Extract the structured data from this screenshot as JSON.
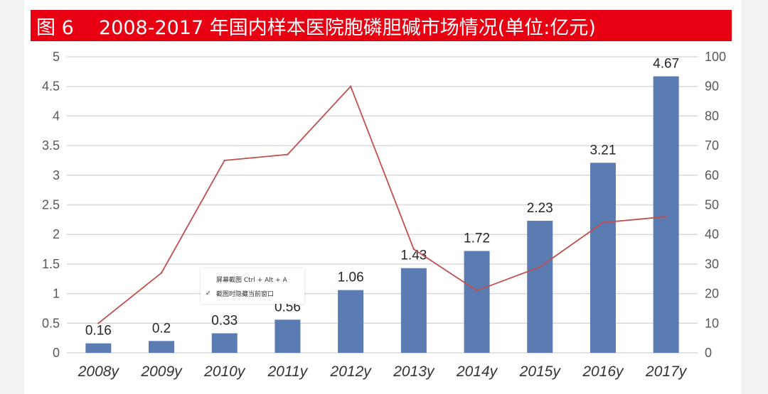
{
  "title": {
    "figure_label": "图 6",
    "text": "2008-2017 年国内样本医院胞磷胆碱市场情况(单位:亿元)"
  },
  "colors": {
    "title_bg": "#e60012",
    "bar": "#5b7bb3",
    "line": "#c0504d",
    "grid": "#d9d9d9"
  },
  "context_menu": {
    "items": [
      {
        "label": "屏幕截图 Ctrl + Alt + A",
        "checked": false
      },
      {
        "label": "截图时隐藏当前窗口",
        "checked": true
      }
    ]
  },
  "chart_data": {
    "type": "bar",
    "categories": [
      "2008y",
      "2009y",
      "2010y",
      "2011y",
      "2012y",
      "2013y",
      "2014y",
      "2015y",
      "2016y",
      "2017y"
    ],
    "series": [
      {
        "type": "bar",
        "axis": "left",
        "values": [
          0.16,
          0.2,
          0.33,
          0.56,
          1.06,
          1.43,
          1.72,
          2.23,
          3.21,
          4.67
        ],
        "data_labels": [
          "0.16",
          "0.2",
          "0.33",
          "0.56",
          "1.06",
          "1.43",
          "1.72",
          "2.23",
          "3.21",
          "4.67"
        ]
      },
      {
        "type": "line",
        "axis": "right",
        "values": [
          10,
          27,
          65,
          67,
          90,
          35,
          21,
          29,
          44,
          46
        ]
      }
    ],
    "y_left": {
      "range": [
        0,
        5
      ],
      "ticks": [
        "0",
        "0.5",
        "1",
        "1.5",
        "2",
        "2.5",
        "3",
        "3.5",
        "4",
        "4.5",
        "5"
      ]
    },
    "y_right": {
      "range": [
        0,
        100
      ],
      "ticks": [
        "0",
        "10",
        "20",
        "30",
        "40",
        "50",
        "60",
        "70",
        "80",
        "90",
        "100"
      ]
    },
    "grid": true,
    "legend": "none"
  }
}
